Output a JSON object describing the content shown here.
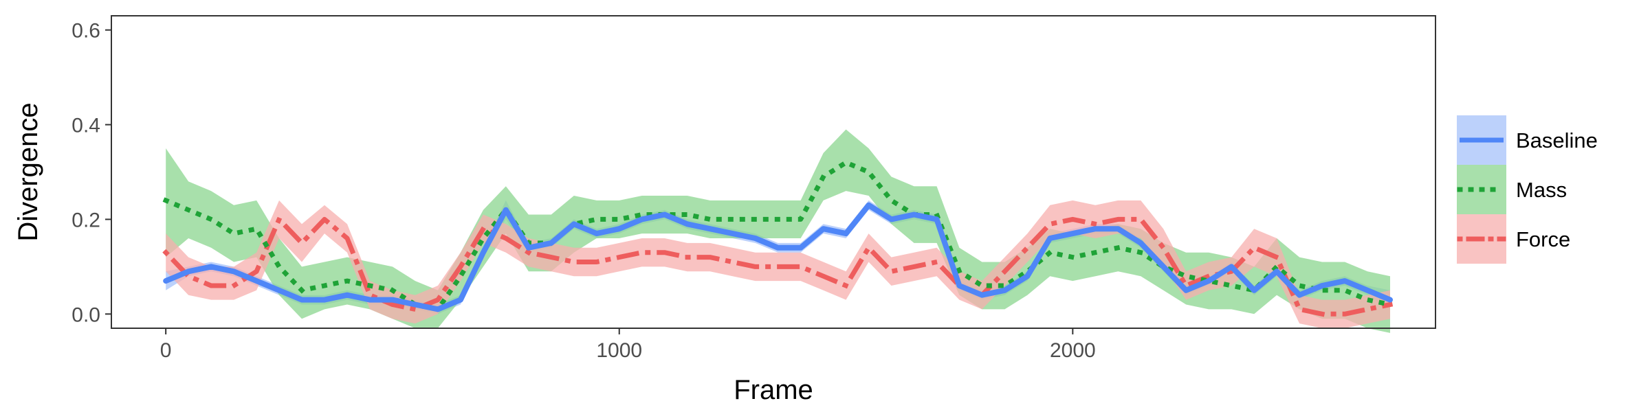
{
  "chart_data": {
    "type": "line",
    "xlabel": "Frame",
    "ylabel": "Divergence",
    "xlim": [
      -120,
      2800
    ],
    "ylim": [
      -0.03,
      0.63
    ],
    "x_ticks": [
      0,
      1000,
      2000
    ],
    "x_tick_labels": [
      "0",
      "1000",
      "2000"
    ],
    "y_ticks": [
      0.0,
      0.2,
      0.4,
      0.6
    ],
    "y_tick_labels": [
      "0.0",
      "0.2",
      "0.4",
      "0.6"
    ],
    "grid": false,
    "legend_position": "right",
    "x": [
      0,
      50,
      100,
      150,
      200,
      250,
      300,
      350,
      400,
      450,
      500,
      550,
      600,
      650,
      700,
      750,
      800,
      850,
      900,
      950,
      1000,
      1050,
      1100,
      1150,
      1200,
      1250,
      1300,
      1350,
      1400,
      1450,
      1500,
      1550,
      1600,
      1650,
      1700,
      1750,
      1800,
      1850,
      1900,
      1950,
      2000,
      2050,
      2100,
      2150,
      2200,
      2250,
      2300,
      2350,
      2400,
      2450,
      2500,
      2550,
      2600,
      2650,
      2700
    ],
    "series": [
      {
        "name": "Baseline",
        "color": "#4F86F7",
        "band_color": "#A6C2FA",
        "line_style": "solid",
        "values": [
          0.07,
          0.09,
          0.1,
          0.09,
          0.07,
          0.05,
          0.03,
          0.03,
          0.04,
          0.03,
          0.03,
          0.02,
          0.01,
          0.03,
          0.13,
          0.22,
          0.14,
          0.15,
          0.19,
          0.17,
          0.18,
          0.2,
          0.21,
          0.19,
          0.18,
          0.17,
          0.16,
          0.14,
          0.14,
          0.18,
          0.17,
          0.23,
          0.2,
          0.21,
          0.2,
          0.06,
          0.04,
          0.05,
          0.08,
          0.16,
          0.17,
          0.18,
          0.18,
          0.15,
          0.1,
          0.05,
          0.07,
          0.1,
          0.05,
          0.09,
          0.04,
          0.06,
          0.07,
          0.05,
          0.03
        ],
        "lower": [
          0.05,
          0.08,
          0.09,
          0.08,
          0.06,
          0.04,
          0.02,
          0.02,
          0.03,
          0.02,
          0.02,
          0.01,
          0.0,
          0.02,
          0.12,
          0.2,
          0.13,
          0.14,
          0.18,
          0.16,
          0.17,
          0.19,
          0.2,
          0.18,
          0.17,
          0.16,
          0.15,
          0.13,
          0.13,
          0.17,
          0.16,
          0.22,
          0.19,
          0.2,
          0.19,
          0.05,
          0.03,
          0.04,
          0.07,
          0.15,
          0.16,
          0.17,
          0.17,
          0.14,
          0.09,
          0.04,
          0.06,
          0.09,
          0.04,
          0.08,
          0.03,
          0.05,
          0.06,
          0.04,
          0.01
        ],
        "upper": [
          0.09,
          0.1,
          0.11,
          0.1,
          0.08,
          0.06,
          0.04,
          0.04,
          0.05,
          0.04,
          0.04,
          0.03,
          0.02,
          0.04,
          0.14,
          0.24,
          0.15,
          0.16,
          0.2,
          0.18,
          0.19,
          0.21,
          0.22,
          0.2,
          0.19,
          0.18,
          0.17,
          0.15,
          0.15,
          0.19,
          0.18,
          0.24,
          0.21,
          0.22,
          0.21,
          0.07,
          0.05,
          0.06,
          0.09,
          0.17,
          0.18,
          0.19,
          0.19,
          0.16,
          0.11,
          0.06,
          0.08,
          0.11,
          0.06,
          0.1,
          0.05,
          0.07,
          0.08,
          0.06,
          0.05
        ]
      },
      {
        "name": "Mass",
        "color": "#1FA337",
        "band_color": "#8BD68F",
        "line_style": "dotted",
        "values": [
          0.24,
          0.22,
          0.2,
          0.17,
          0.18,
          0.1,
          0.05,
          0.06,
          0.07,
          0.06,
          0.05,
          0.02,
          0.01,
          0.08,
          0.16,
          0.22,
          0.15,
          0.15,
          0.19,
          0.2,
          0.2,
          0.21,
          0.21,
          0.21,
          0.2,
          0.2,
          0.2,
          0.2,
          0.2,
          0.29,
          0.32,
          0.3,
          0.24,
          0.21,
          0.21,
          0.09,
          0.06,
          0.06,
          0.09,
          0.13,
          0.12,
          0.13,
          0.14,
          0.13,
          0.1,
          0.08,
          0.07,
          0.06,
          0.05,
          0.1,
          0.06,
          0.05,
          0.05,
          0.03,
          0.02
        ],
        "lower": [
          0.12,
          0.16,
          0.14,
          0.11,
          0.12,
          0.04,
          -0.01,
          0.01,
          0.02,
          0.01,
          -0.01,
          -0.03,
          -0.03,
          0.03,
          0.1,
          0.17,
          0.09,
          0.09,
          0.13,
          0.16,
          0.16,
          0.17,
          0.17,
          0.17,
          0.16,
          0.16,
          0.16,
          0.16,
          0.16,
          0.24,
          0.26,
          0.25,
          0.19,
          0.15,
          0.15,
          0.04,
          0.01,
          0.01,
          0.04,
          0.08,
          0.07,
          0.08,
          0.09,
          0.08,
          0.05,
          0.02,
          0.01,
          0.01,
          0.0,
          0.04,
          0.01,
          -0.01,
          -0.01,
          -0.03,
          -0.04
        ],
        "upper": [
          0.35,
          0.28,
          0.26,
          0.23,
          0.24,
          0.16,
          0.1,
          0.11,
          0.12,
          0.11,
          0.1,
          0.07,
          0.05,
          0.13,
          0.22,
          0.27,
          0.21,
          0.21,
          0.25,
          0.24,
          0.24,
          0.25,
          0.25,
          0.25,
          0.24,
          0.24,
          0.24,
          0.24,
          0.24,
          0.34,
          0.39,
          0.35,
          0.29,
          0.27,
          0.27,
          0.14,
          0.11,
          0.11,
          0.14,
          0.18,
          0.17,
          0.18,
          0.19,
          0.18,
          0.15,
          0.13,
          0.13,
          0.12,
          0.1,
          0.16,
          0.12,
          0.11,
          0.11,
          0.09,
          0.08
        ]
      },
      {
        "name": "Force",
        "color": "#EE5D5D",
        "band_color": "#F7AFAD",
        "line_style": "dotdash",
        "values": [
          0.13,
          0.08,
          0.06,
          0.06,
          0.09,
          0.2,
          0.15,
          0.2,
          0.16,
          0.04,
          0.02,
          0.01,
          0.03,
          0.1,
          0.18,
          0.16,
          0.13,
          0.12,
          0.11,
          0.11,
          0.12,
          0.13,
          0.13,
          0.12,
          0.12,
          0.11,
          0.1,
          0.1,
          0.1,
          0.08,
          0.06,
          0.14,
          0.09,
          0.1,
          0.11,
          0.06,
          0.04,
          0.09,
          0.14,
          0.19,
          0.2,
          0.19,
          0.2,
          0.2,
          0.14,
          0.06,
          0.08,
          0.09,
          0.14,
          0.12,
          0.01,
          0.0,
          0.0,
          0.01,
          0.02
        ],
        "lower": [
          0.09,
          0.04,
          0.03,
          0.03,
          0.05,
          0.16,
          0.11,
          0.17,
          0.13,
          0.01,
          -0.01,
          -0.02,
          0.0,
          0.07,
          0.15,
          0.13,
          0.1,
          0.09,
          0.08,
          0.08,
          0.09,
          0.1,
          0.1,
          0.09,
          0.09,
          0.08,
          0.07,
          0.07,
          0.07,
          0.05,
          0.03,
          0.11,
          0.06,
          0.07,
          0.08,
          0.03,
          0.01,
          0.06,
          0.11,
          0.16,
          0.17,
          0.16,
          0.17,
          0.16,
          0.1,
          0.03,
          0.05,
          0.06,
          0.1,
          0.08,
          -0.02,
          -0.03,
          -0.03,
          -0.02,
          -0.01
        ],
        "upper": [
          0.17,
          0.12,
          0.1,
          0.1,
          0.13,
          0.24,
          0.19,
          0.23,
          0.19,
          0.07,
          0.05,
          0.04,
          0.06,
          0.13,
          0.21,
          0.19,
          0.16,
          0.15,
          0.14,
          0.14,
          0.15,
          0.16,
          0.16,
          0.15,
          0.15,
          0.14,
          0.13,
          0.13,
          0.13,
          0.11,
          0.09,
          0.17,
          0.12,
          0.13,
          0.14,
          0.09,
          0.07,
          0.12,
          0.17,
          0.23,
          0.24,
          0.23,
          0.24,
          0.24,
          0.18,
          0.09,
          0.11,
          0.12,
          0.18,
          0.16,
          0.04,
          0.03,
          0.03,
          0.04,
          0.05
        ]
      }
    ]
  }
}
